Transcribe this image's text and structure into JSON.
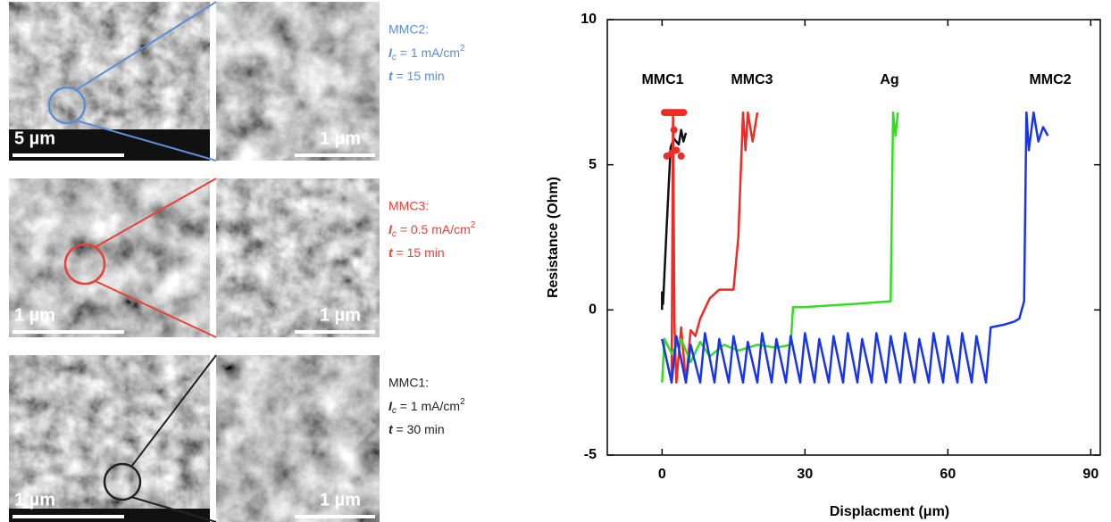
{
  "panels": [
    {
      "color": "#5b8fd6",
      "title": "MMC2:",
      "current": {
        "sym": "I",
        "sub": "c",
        "rest": " = 1 mA/cm",
        "sup": "2"
      },
      "time": {
        "sym": "t",
        "rest": " = 15 min"
      },
      "scale_left": "5 µm",
      "scale_right": "1 µm"
    },
    {
      "color": "#e8413a",
      "title": "MMC3:",
      "current": {
        "sym": "I",
        "sub": "c",
        "rest": " = 0.5 mA/cm",
        "sup": "2"
      },
      "time": {
        "sym": "t",
        "rest": " = 15 min"
      },
      "scale_left": "1 µm",
      "scale_right": "1 µm"
    },
    {
      "color": "#222222",
      "title": "MMC1:",
      "current": {
        "sym": "I",
        "sub": "c",
        "rest": " = 1 mA/cm",
        "sup": "2"
      },
      "time": {
        "sym": "t",
        "rest": " =  30 min"
      },
      "scale_left": "1 µm",
      "scale_right": "1 µm"
    }
  ],
  "chart_data": {
    "type": "line",
    "x_label": "Displacment (μm)",
    "y_label": "Resistance (Ohm)",
    "xlim": [
      -11.5,
      92
    ],
    "ylim": [
      -5,
      10
    ],
    "xticks": [
      0,
      30,
      60,
      90
    ],
    "yticks": [
      -5,
      0,
      5,
      10
    ],
    "series": [
      {
        "name": "MMC1",
        "color": "#111111",
        "x": [
          0,
          0,
          0.2,
          1,
          1.8,
          2.5,
          3.5,
          4,
          4.5,
          5
        ],
        "values": [
          0,
          0.6,
          0.2,
          3,
          5.6,
          5.9,
          5.7,
          6.2,
          5.8,
          6.1
        ]
      },
      {
        "name": "MMC3",
        "color": "#ee2b24",
        "x": [
          2,
          2.3,
          2.6,
          3,
          4,
          5,
          6,
          7,
          8,
          10,
          12,
          15,
          16,
          17,
          17.5,
          18,
          19,
          20
        ],
        "values": [
          -2.5,
          6.8,
          -0.5,
          -2.5,
          -0.6,
          -2.5,
          -0.7,
          -0.9,
          -0.3,
          0.4,
          0.7,
          0.7,
          2.5,
          6.8,
          5.5,
          6.8,
          5.8,
          6.8
        ]
      },
      {
        "name": "Ag",
        "color": "#33dd22",
        "x": [
          0,
          0.5,
          2,
          4,
          6,
          8,
          10,
          13,
          16,
          20,
          24,
          27,
          27.5,
          30,
          40,
          48,
          48.5,
          49,
          49.5
        ],
        "values": [
          -2.5,
          -1.0,
          -1.5,
          -1.0,
          -1.8,
          -1.1,
          -1.6,
          -1.2,
          -1.4,
          -1.2,
          -1.3,
          -1.2,
          0.1,
          0.1,
          0.2,
          0.3,
          6.8,
          6.0,
          6.8
        ]
      },
      {
        "name": "MMC2",
        "color": "#1a35e8",
        "x": [
          0,
          2,
          3,
          5,
          6,
          8,
          9,
          11,
          12,
          14,
          15,
          17,
          18,
          20,
          21,
          23,
          24,
          26,
          27,
          29,
          30,
          32,
          33,
          35,
          36,
          38,
          39,
          41,
          42,
          44,
          45,
          47,
          48,
          50,
          51,
          53,
          54,
          56,
          57,
          59,
          60,
          62,
          63,
          65,
          66,
          68,
          69,
          72,
          74,
          75,
          76,
          76.5,
          77,
          78,
          79,
          80,
          81
        ],
        "values": [
          -1.0,
          -2.5,
          -0.9,
          -2.5,
          -1.2,
          -2.5,
          -0.8,
          -2.5,
          -1.0,
          -2.5,
          -0.9,
          -2.5,
          -1.1,
          -2.5,
          -0.8,
          -2.5,
          -1.0,
          -2.5,
          -0.9,
          -2.5,
          -0.8,
          -2.5,
          -1.0,
          -2.5,
          -0.9,
          -2.5,
          -0.8,
          -2.5,
          -1.0,
          -2.5,
          -0.8,
          -2.5,
          -0.9,
          -2.5,
          -0.8,
          -2.5,
          -1.0,
          -2.5,
          -0.8,
          -2.5,
          -0.9,
          -2.5,
          -0.8,
          -2.5,
          -0.9,
          -2.5,
          -0.6,
          -0.5,
          -0.4,
          -0.3,
          0.3,
          6.8,
          5.5,
          6.8,
          5.8,
          6.3,
          6.0
        ]
      }
    ],
    "markers": {
      "color": "#ee2b24",
      "x": [
        0.5,
        1,
        1.5,
        2,
        2.5,
        3,
        3.5,
        4,
        4.5,
        1,
        2,
        3,
        4,
        2.5
      ],
      "values": [
        6.8,
        6.8,
        6.8,
        6.8,
        6.8,
        6.8,
        6.8,
        6.8,
        6.8,
        5.3,
        5.4,
        5.5,
        5.3,
        6.2
      ]
    }
  }
}
